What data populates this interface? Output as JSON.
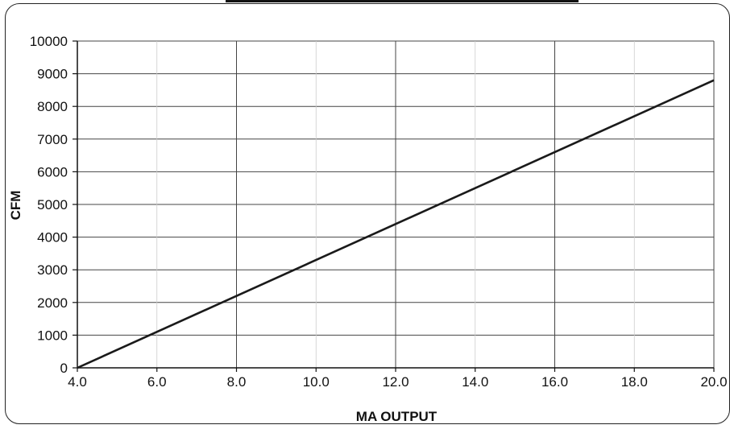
{
  "chart_data": {
    "type": "line",
    "title": "",
    "xlabel": "MA OUTPUT",
    "ylabel": "CFM",
    "xlim": [
      4.0,
      20.0
    ],
    "ylim": [
      0,
      10000
    ],
    "x_ticks": [
      "4.0",
      "6.0",
      "8.0",
      "10.0",
      "12.0",
      "14.0",
      "16.0",
      "18.0",
      "20.0"
    ],
    "y_ticks": [
      "0",
      "1000",
      "2000",
      "3000",
      "4000",
      "5000",
      "6000",
      "7000",
      "8000",
      "9000",
      "10000"
    ],
    "grid": true,
    "series": [
      {
        "x": [
          4.0,
          20.0
        ],
        "y": [
          0,
          8800
        ],
        "color": "#1a1a1a"
      }
    ]
  }
}
